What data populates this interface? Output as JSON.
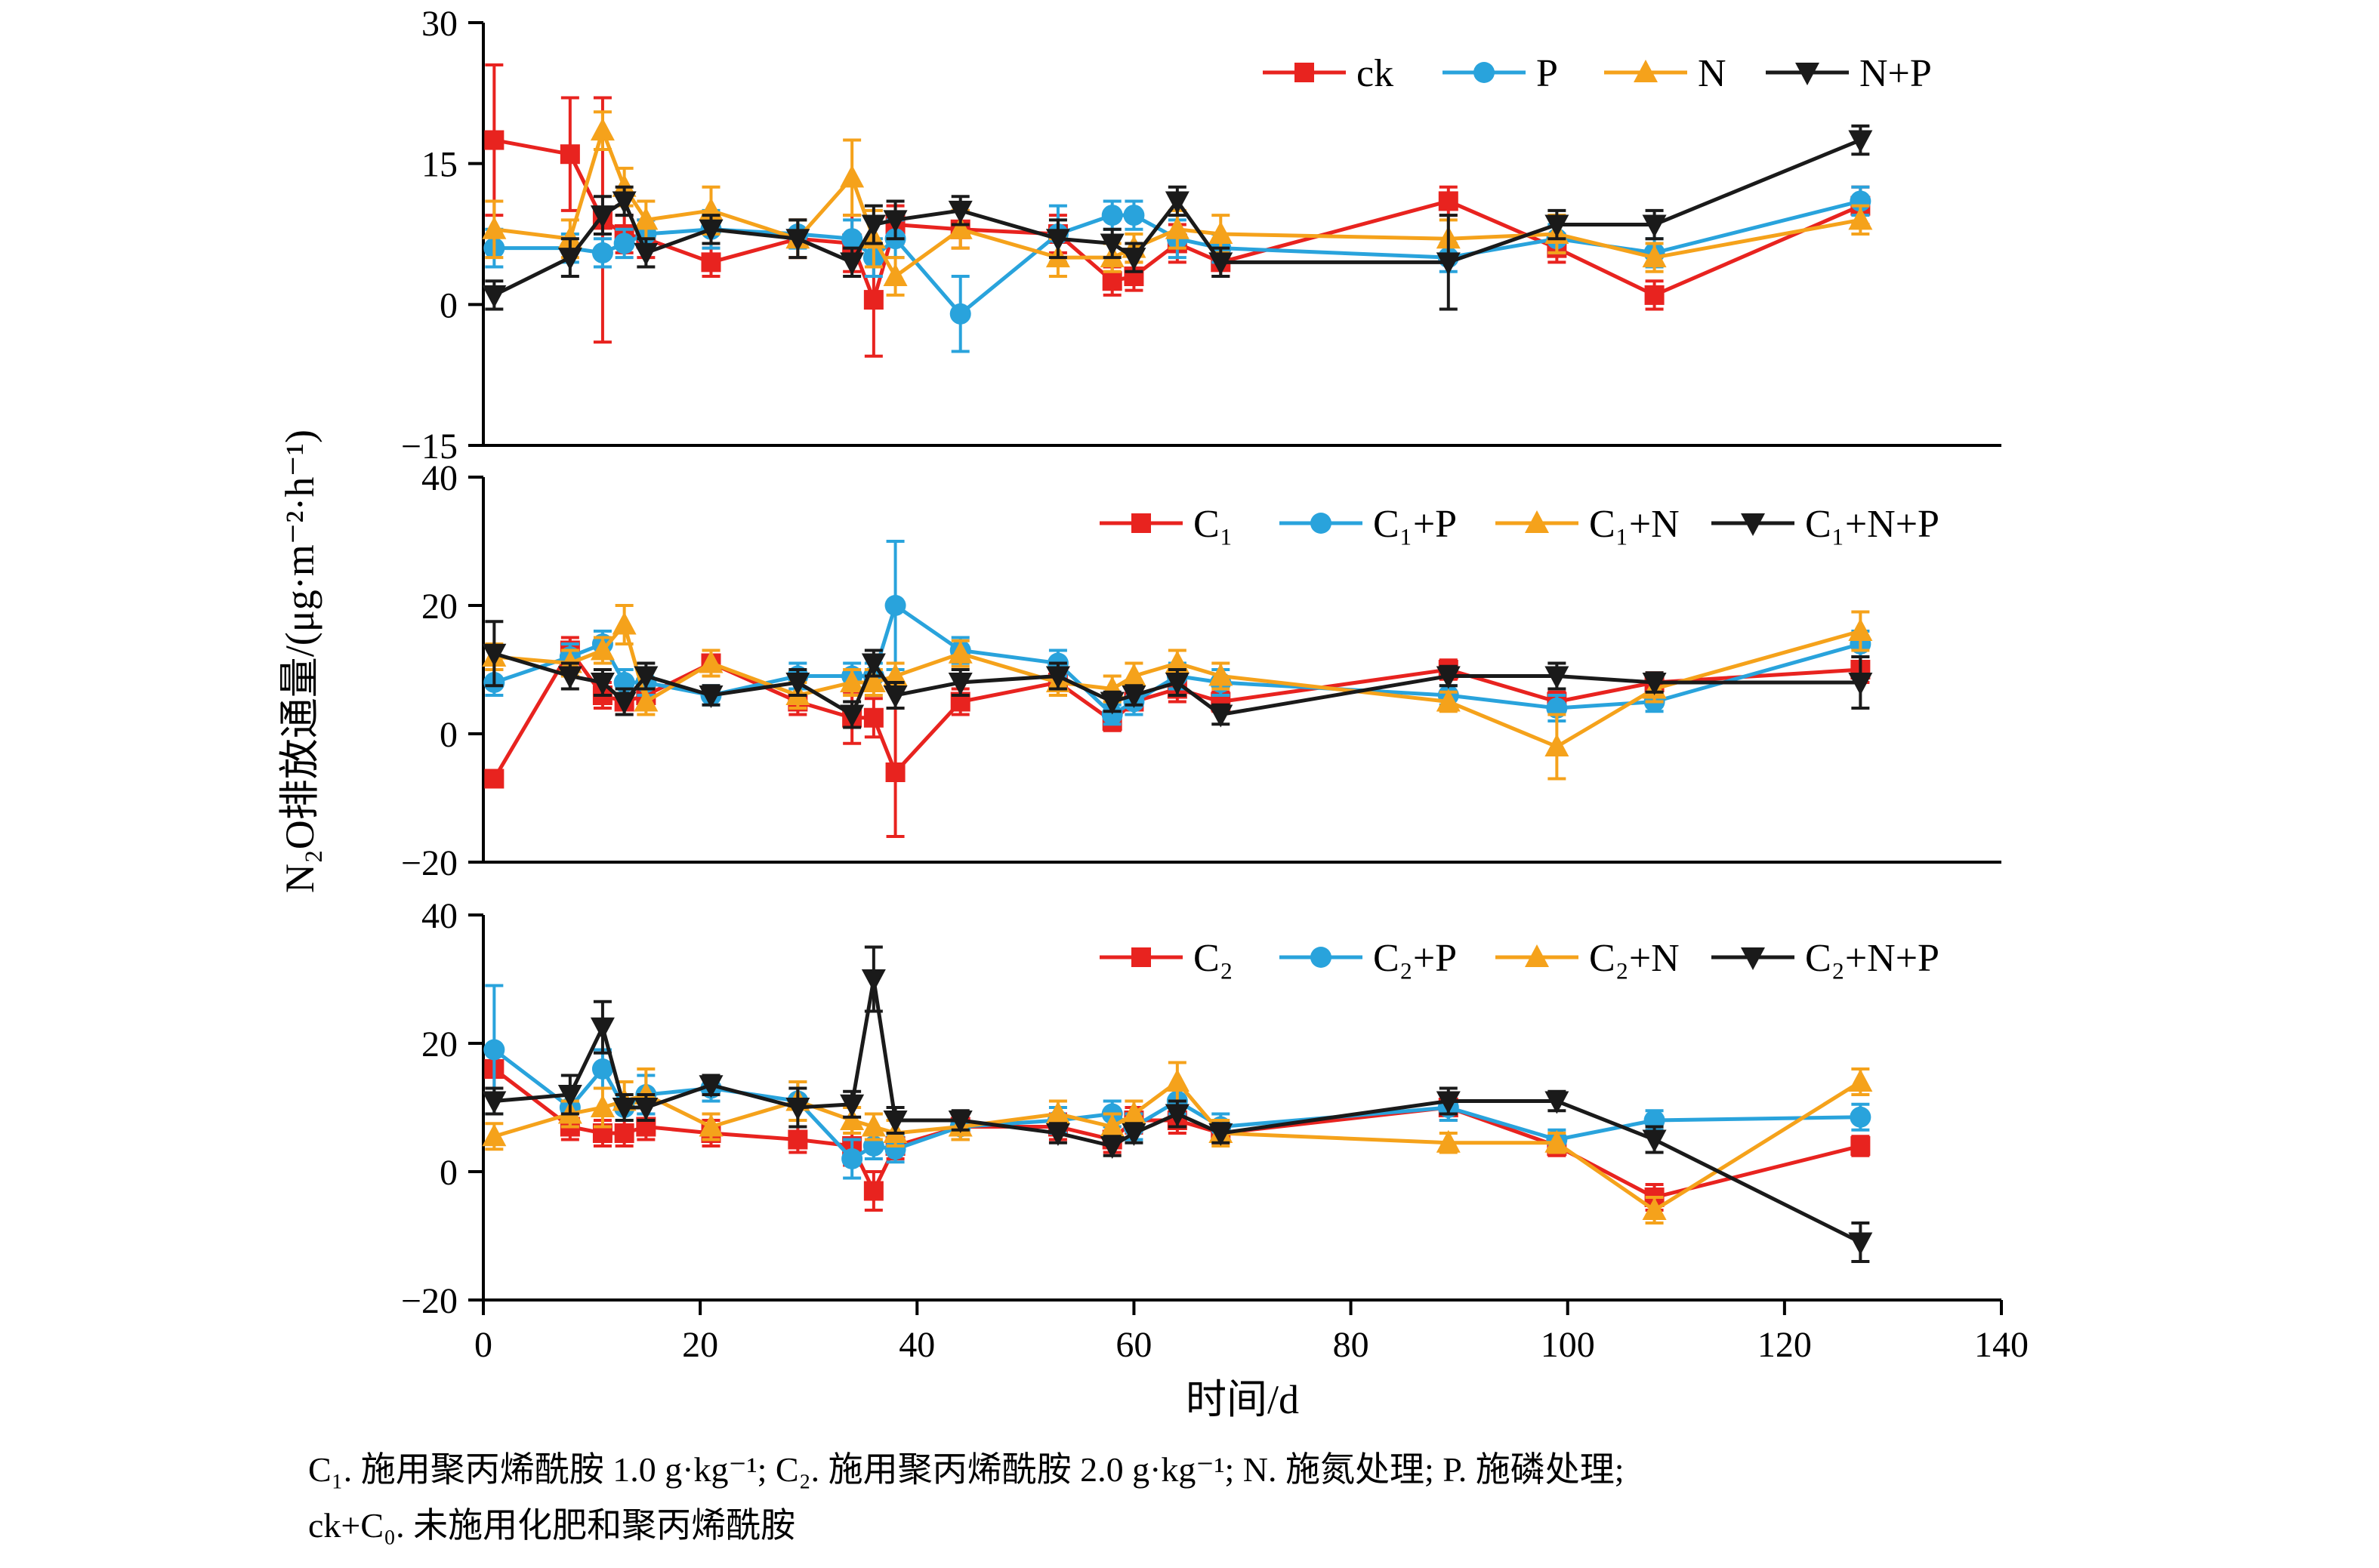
{
  "figure": {
    "xlabel": "时间/d",
    "ylabel": "N₂O排放通量/(μg·m⁻²·h⁻¹)",
    "caption_line1": "C₁. 施用聚丙烯酰胺 1.0 g·kg⁻¹; C₂. 施用聚丙烯酰胺 2.0 g·kg⁻¹; N. 施氮处理; P. 施磷处理;",
    "caption_line2": "ck+C₀. 未施用化肥和聚丙烯酰胺",
    "xlim": [
      0,
      140
    ],
    "xticks": [
      0,
      20,
      40,
      60,
      80,
      100,
      120,
      140
    ],
    "colors": {
      "red": "#e8231f",
      "blue": "#29a3dc",
      "orange": "#f5a21b",
      "black": "#1a1a1a"
    }
  },
  "chart_data": [
    {
      "type": "line",
      "panel": "top",
      "x": [
        1,
        8,
        11,
        13,
        15,
        21,
        29,
        34,
        36,
        38,
        44,
        53,
        58,
        60,
        64,
        68,
        89,
        99,
        108,
        127
      ],
      "ylim": [
        -15,
        30
      ],
      "yticks": [
        -15,
        0,
        15,
        30
      ],
      "legend_position": "top-right-inside",
      "series": [
        {
          "name": "ck",
          "color": "#e8231f",
          "marker": "square",
          "y": [
            17.5,
            16,
            9,
            7.5,
            7,
            4.5,
            7,
            6.5,
            0.5,
            8.5,
            8,
            7.5,
            2.5,
            3,
            6.5,
            4.5,
            11,
            6,
            1,
            10.5
          ],
          "err": [
            8,
            6,
            13,
            2,
            2,
            1.5,
            2,
            3,
            6,
            2,
            2,
            2,
            1.5,
            1.5,
            2,
            1.5,
            1.5,
            1.5,
            1.5,
            2
          ]
        },
        {
          "name": "P",
          "color": "#29a3dc",
          "marker": "circle",
          "y": [
            6,
            6,
            5.5,
            6.5,
            7.5,
            8,
            7.5,
            7,
            5,
            7,
            -1,
            7.5,
            9.5,
            9.5,
            7,
            6,
            5,
            7,
            5.5,
            11
          ],
          "err": [
            2,
            1.5,
            1.5,
            1.5,
            1.5,
            2,
            1.5,
            2,
            2,
            2,
            4,
            3,
            1.5,
            1.5,
            2,
            1.5,
            1.5,
            1.5,
            1.5,
            1.5
          ]
        },
        {
          "name": "N",
          "color": "#f5a21b",
          "marker": "triangle-up",
          "y": [
            8,
            7,
            18.5,
            12.5,
            9,
            10,
            7,
            13.5,
            7,
            3,
            8,
            5,
            5,
            6,
            8,
            7.5,
            7,
            7.5,
            5,
            9
          ],
          "err": [
            3,
            2,
            2,
            2,
            2,
            2.5,
            2,
            4,
            3,
            2,
            2,
            2,
            1.5,
            1.5,
            2,
            2,
            2,
            2,
            1.5,
            1.5
          ]
        },
        {
          "name": "N+P",
          "color": "#1a1a1a",
          "marker": "triangle-down",
          "y": [
            1,
            5,
            9.5,
            11,
            5.5,
            8,
            7,
            4.5,
            8.5,
            9,
            10,
            7,
            6.5,
            5,
            11,
            4.5,
            4.5,
            8.5,
            8.5,
            17.5
          ],
          "err": [
            1.5,
            2,
            2,
            1.5,
            1.5,
            1.5,
            2,
            1.5,
            2,
            2,
            1.5,
            2,
            1.5,
            1.5,
            1.5,
            1.5,
            5,
            1.5,
            1.5,
            1.5
          ]
        }
      ]
    },
    {
      "type": "line",
      "panel": "middle",
      "x": [
        1,
        8,
        11,
        13,
        15,
        21,
        29,
        34,
        36,
        38,
        44,
        53,
        58,
        60,
        64,
        68,
        89,
        99,
        108,
        127
      ],
      "ylim": [
        -20,
        40
      ],
      "yticks": [
        -20,
        0,
        20,
        40
      ],
      "legend_position": "top-right-inside",
      "series": [
        {
          "name": "C₁",
          "color": "#e8231f",
          "marker": "square",
          "y": [
            -7,
            13,
            6,
            5,
            6,
            11,
            5,
            2.5,
            2.5,
            -6,
            5,
            8,
            2,
            5,
            7,
            5,
            10,
            5,
            8,
            10
          ],
          "err": [
            1,
            2,
            2,
            2,
            2,
            2,
            2,
            4,
            3,
            10,
            2,
            2,
            1.5,
            2,
            2,
            1.5,
            1.5,
            1.5,
            1.5,
            2
          ]
        },
        {
          "name": "C₁+P",
          "color": "#29a3dc",
          "marker": "circle",
          "y": [
            8,
            12,
            14,
            8,
            8,
            6,
            9,
            9,
            9,
            20,
            13,
            11,
            3,
            5,
            9,
            8,
            6,
            4,
            5,
            14
          ],
          "err": [
            2,
            2,
            2,
            2,
            2,
            1.5,
            2,
            2,
            2,
            10,
            2,
            2,
            1.5,
            2,
            2,
            2,
            1.5,
            2,
            1.5,
            2
          ]
        },
        {
          "name": "C₁+N",
          "color": "#f5a21b",
          "marker": "triangle-up",
          "y": [
            12,
            11,
            13,
            17,
            5,
            11,
            6,
            8,
            8,
            9,
            12.5,
            8,
            7,
            9,
            11,
            9,
            5,
            -2,
            7,
            16
          ],
          "err": [
            2,
            2,
            2,
            3,
            2,
            2,
            2,
            2,
            2,
            2,
            2,
            2,
            2,
            2,
            2,
            2,
            1.5,
            5,
            2,
            3
          ]
        },
        {
          "name": "C₁+N+P",
          "color": "#1a1a1a",
          "marker": "triangle-down",
          "y": [
            12.5,
            9,
            8,
            5,
            9,
            6,
            8,
            3,
            11,
            6,
            8,
            9,
            5,
            6,
            8,
            3,
            9,
            9,
            8,
            8
          ],
          "err": [
            5,
            2,
            2,
            2,
            2,
            1.5,
            2,
            2,
            2,
            2,
            2,
            2,
            1.5,
            1.5,
            2,
            1.5,
            1.5,
            2,
            1.5,
            4
          ]
        }
      ]
    },
    {
      "type": "line",
      "panel": "bottom",
      "x": [
        1,
        8,
        11,
        13,
        15,
        21,
        29,
        34,
        36,
        38,
        44,
        53,
        58,
        60,
        64,
        68,
        89,
        99,
        108,
        127
      ],
      "ylim": [
        -20,
        40
      ],
      "yticks": [
        -20,
        0,
        20,
        40
      ],
      "legend_position": "top-right-inside",
      "series": [
        {
          "name": "C₂",
          "color": "#e8231f",
          "marker": "square",
          "y": [
            16,
            7,
            6,
            6,
            7,
            6,
            5,
            4,
            -3,
            4,
            7,
            7,
            5,
            8,
            8,
            6,
            10,
            4,
            -4,
            4
          ],
          "err": [
            3,
            2,
            2,
            2,
            2,
            2,
            2,
            3,
            3,
            2,
            2,
            2,
            2,
            2,
            2,
            1.5,
            2,
            1.5,
            2,
            1.5
          ]
        },
        {
          "name": "C₂+P",
          "color": "#29a3dc",
          "marker": "circle",
          "y": [
            19,
            10,
            16,
            10,
            12,
            13,
            11,
            2,
            4,
            3.5,
            7,
            8,
            9,
            7,
            11,
            7,
            10,
            5,
            8,
            8.5
          ],
          "err": [
            10,
            3,
            3,
            2,
            3,
            2,
            3,
            3,
            2,
            2,
            2,
            2,
            2,
            2,
            2,
            2,
            2,
            1.5,
            1.5,
            2
          ]
        },
        {
          "name": "C₂+N",
          "color": "#f5a21b",
          "marker": "triangle-up",
          "y": [
            5.5,
            9,
            10,
            11,
            12,
            7,
            11,
            8,
            7,
            6,
            7,
            9,
            7,
            9,
            14,
            6,
            4.5,
            4.5,
            -6,
            14
          ],
          "err": [
            2,
            2,
            3,
            3,
            4,
            2,
            3,
            2,
            2,
            2,
            2,
            2,
            2,
            2,
            3,
            2,
            1.5,
            1.5,
            2,
            2
          ]
        },
        {
          "name": "C₂+N+P",
          "color": "#1a1a1a",
          "marker": "triangle-down",
          "y": [
            11,
            12,
            22.5,
            10,
            10,
            13.5,
            10,
            10.5,
            30,
            8,
            8,
            6,
            4,
            6,
            9,
            6,
            11,
            11,
            5,
            -11
          ],
          "err": [
            2,
            3,
            4,
            2,
            2,
            1.5,
            3,
            2,
            5,
            2,
            1.5,
            1.5,
            1.5,
            1.5,
            2,
            1.5,
            2,
            1.5,
            2,
            3
          ]
        }
      ]
    }
  ]
}
